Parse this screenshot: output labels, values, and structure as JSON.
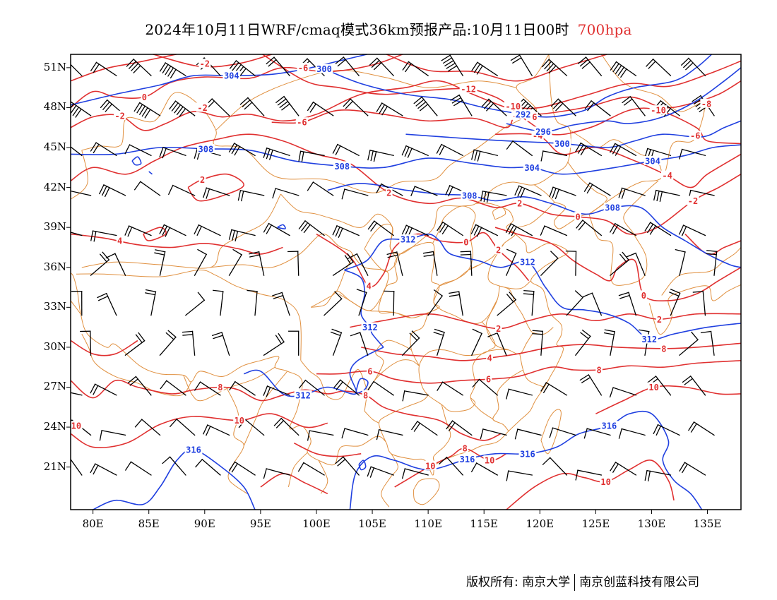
{
  "title": {
    "main": "2024年10月11日WRF/cmaq模式36km预报产品:10月11日00时",
    "level": "700hpa"
  },
  "colors": {
    "temperature": "#e03030",
    "height": "#2040e0",
    "border": "#e09040",
    "wind": "#000000"
  },
  "axes": {
    "lat_labels": [
      "51N",
      "48N",
      "45N",
      "42N",
      "39N",
      "36N",
      "33N",
      "30N",
      "27N",
      "24N",
      "21N"
    ],
    "lon_labels": [
      "80E",
      "85E",
      "90E",
      "95E",
      "100E",
      "105E",
      "110E",
      "115E",
      "120E",
      "125E",
      "130E",
      "135E"
    ]
  },
  "height_labels": [
    {
      "text": "304",
      "lon": 92.4,
      "lat": 50.4
    },
    {
      "text": "300",
      "lon": 100.7,
      "lat": 50.9
    },
    {
      "text": "292",
      "lon": 118.5,
      "lat": 47.5
    },
    {
      "text": "296",
      "lon": 120.3,
      "lat": 46.2
    },
    {
      "text": "300",
      "lon": 122.0,
      "lat": 45.3
    },
    {
      "text": "304",
      "lon": 119.3,
      "lat": 43.5
    },
    {
      "text": "304",
      "lon": 130.1,
      "lat": 44.0
    },
    {
      "text": "308",
      "lon": 90.1,
      "lat": 44.9
    },
    {
      "text": "308",
      "lon": 102.3,
      "lat": 43.6
    },
    {
      "text": "308",
      "lon": 113.7,
      "lat": 41.4
    },
    {
      "text": "308",
      "lon": 126.5,
      "lat": 40.5
    },
    {
      "text": "312",
      "lon": 108.2,
      "lat": 38.1
    },
    {
      "text": "312",
      "lon": 118.9,
      "lat": 36.4
    },
    {
      "text": "312",
      "lon": 104.8,
      "lat": 31.5
    },
    {
      "text": "312",
      "lon": 129.8,
      "lat": 30.6
    },
    {
      "text": "312",
      "lon": 98.8,
      "lat": 26.4
    },
    {
      "text": "316",
      "lon": 126.2,
      "lat": 24.1
    },
    {
      "text": "316",
      "lon": 113.5,
      "lat": 21.6
    },
    {
      "text": "316",
      "lon": 89.0,
      "lat": 22.3
    },
    {
      "text": "316",
      "lon": 118.9,
      "lat": 22.0
    }
  ],
  "temp_labels": [
    {
      "text": "-2",
      "lon": 90.0,
      "lat": 51.3
    },
    {
      "text": "-6",
      "lon": 98.8,
      "lat": 51.0
    },
    {
      "text": "-12",
      "lon": 113.6,
      "lat": 49.4
    },
    {
      "text": "-10",
      "lon": 117.6,
      "lat": 48.1
    },
    {
      "text": "-8",
      "lon": 118.0,
      "lat": 47.4
    },
    {
      "text": "-6",
      "lon": 119.3,
      "lat": 47.3
    },
    {
      "text": "-4",
      "lon": 119.8,
      "lat": 45.9
    },
    {
      "text": "-10",
      "lon": 130.6,
      "lat": 47.8
    },
    {
      "text": "-8",
      "lon": 134.9,
      "lat": 48.3
    },
    {
      "text": "-6",
      "lon": 133.9,
      "lat": 45.9
    },
    {
      "text": "-4",
      "lon": 131.4,
      "lat": 42.9
    },
    {
      "text": "-2",
      "lon": 133.7,
      "lat": 41.0
    },
    {
      "text": "0",
      "lon": 84.6,
      "lat": 48.8
    },
    {
      "text": "-2",
      "lon": 82.4,
      "lat": 47.4
    },
    {
      "text": "-2",
      "lon": 89.8,
      "lat": 48.0
    },
    {
      "text": "-6",
      "lon": 98.7,
      "lat": 46.9
    },
    {
      "text": "2",
      "lon": 89.8,
      "lat": 42.6
    },
    {
      "text": "2",
      "lon": 106.5,
      "lat": 41.6
    },
    {
      "text": "2",
      "lon": 118.2,
      "lat": 40.8
    },
    {
      "text": "0",
      "lon": 123.4,
      "lat": 39.8
    },
    {
      "text": "0",
      "lon": 113.4,
      "lat": 37.9
    },
    {
      "text": "2",
      "lon": 116.3,
      "lat": 37.3
    },
    {
      "text": "4",
      "lon": 82.4,
      "lat": 38.0
    },
    {
      "text": "4",
      "lon": 104.7,
      "lat": 34.6
    },
    {
      "text": "2",
      "lon": 116.3,
      "lat": 31.4
    },
    {
      "text": "0",
      "lon": 129.3,
      "lat": 33.9
    },
    {
      "text": "2",
      "lon": 130.7,
      "lat": 32.1
    },
    {
      "text": "8",
      "lon": 131.1,
      "lat": 29.9
    },
    {
      "text": "4",
      "lon": 115.5,
      "lat": 29.2
    },
    {
      "text": "6",
      "lon": 104.8,
      "lat": 28.2
    },
    {
      "text": "6",
      "lon": 115.4,
      "lat": 27.6
    },
    {
      "text": "8",
      "lon": 125.3,
      "lat": 28.3
    },
    {
      "text": "8",
      "lon": 91.4,
      "lat": 27.0
    },
    {
      "text": "8",
      "lon": 104.4,
      "lat": 26.4
    },
    {
      "text": "10",
      "lon": 130.2,
      "lat": 27.0
    },
    {
      "text": "10",
      "lon": 93.1,
      "lat": 24.5
    },
    {
      "text": "10",
      "lon": 78.5,
      "lat": 24.1
    },
    {
      "text": "8",
      "lon": 113.3,
      "lat": 22.4
    },
    {
      "text": "10",
      "lon": 115.5,
      "lat": 21.5
    },
    {
      "text": "10",
      "lon": 110.2,
      "lat": 21.1
    },
    {
      "text": "10",
      "lon": 125.9,
      "lat": 19.9
    }
  ],
  "copyright": {
    "left": "版权所有: 南京大学",
    "right": "南京创蓝科技有限公司"
  }
}
